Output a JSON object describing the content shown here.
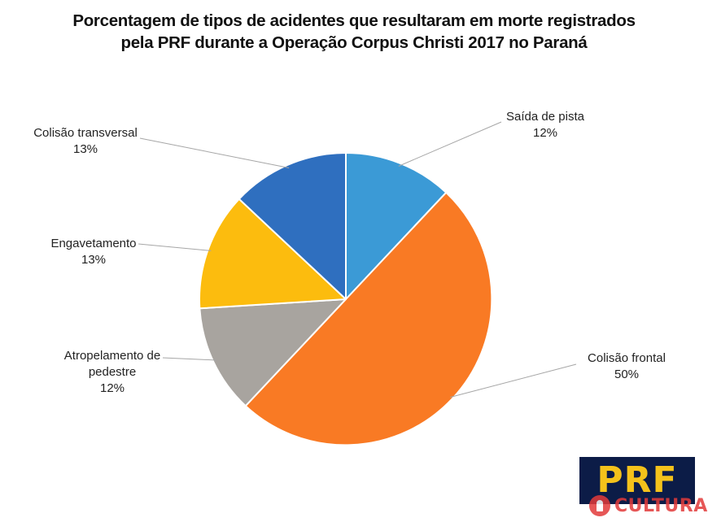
{
  "chart_data": {
    "type": "pie",
    "title": [
      "Porcentagem de tipos de acidentes que resultaram em morte registrados",
      "pela PRF durante a Operação Corpus Christi 2017 no Paraná"
    ],
    "slices": [
      {
        "label": "Saída de pista",
        "value": 12,
        "value_label": "12%",
        "color": "#3b9ad6"
      },
      {
        "label": "Colisão frontal",
        "value": 50,
        "value_label": "50%",
        "color": "#f97a24"
      },
      {
        "label_lines": [
          "Atropelamento de",
          "pedestre"
        ],
        "value": 12,
        "value_label": "12%",
        "color": "#a8a49f"
      },
      {
        "label": "Engavetamento",
        "value": 13,
        "value_label": "13%",
        "color": "#fcbc0e"
      },
      {
        "label": "Colisão transversal",
        "value": 13,
        "value_label": "13%",
        "color": "#2f6fbf"
      }
    ],
    "start_angle": "12 o'clock",
    "direction": "clockwise",
    "legend": "none"
  },
  "logo": {
    "text": "PRF",
    "background": "#0c1c47",
    "color": "#f4c21b"
  },
  "watermark": {
    "text": "CULTURA",
    "color": "#e23a3a"
  }
}
